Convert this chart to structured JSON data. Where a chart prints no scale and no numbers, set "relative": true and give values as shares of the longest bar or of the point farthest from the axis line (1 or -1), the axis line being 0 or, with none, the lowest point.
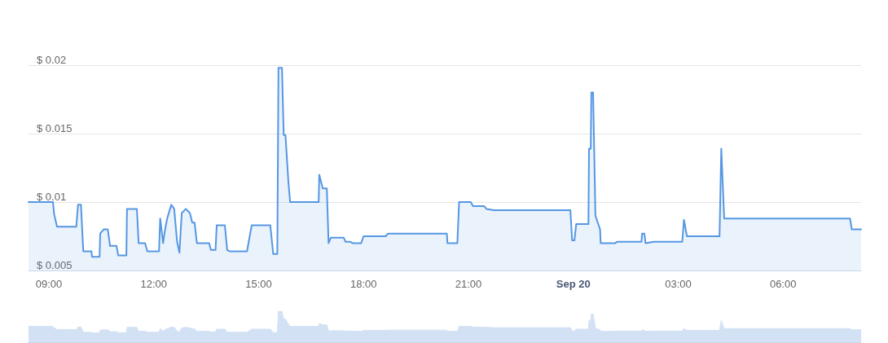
{
  "chart_data": [
    {
      "type": "area",
      "x": [
        "--09-19T08:25",
        "--09-19T09:07",
        "--09-19T09:09",
        "--09-19T09:14",
        "--09-19T09:47",
        "--09-19T09:50",
        "--09-19T09:55",
        "--09-19T09:59",
        "--09-19T10:13",
        "--09-19T10:14",
        "--09-19T10:27",
        "--09-19T10:28",
        "--09-19T10:34",
        "--09-19T10:41",
        "--09-19T10:45",
        "--09-19T10:56",
        "--09-19T10:59",
        "--09-19T11:13",
        "--09-19T11:14",
        "--09-19T11:31",
        "--09-19T11:34",
        "--09-19T11:45",
        "--09-19T11:49",
        "--09-19T12:09",
        "--09-19T12:11",
        "--09-19T12:16",
        "--09-19T12:19",
        "--09-19T12:23",
        "--09-19T12:30",
        "--09-19T12:35",
        "--09-19T12:40",
        "--09-19T12:44",
        "--09-19T12:48",
        "--09-19T12:55",
        "--09-19T13:02",
        "--09-19T13:06",
        "--09-19T13:10",
        "--09-19T13:14",
        "--09-19T13:35",
        "--09-19T13:38",
        "--09-19T13:46",
        "--09-19T13:48",
        "--09-19T14:02",
        "--09-19T14:06",
        "--09-19T14:10",
        "--09-19T14:40",
        "--09-19T14:48",
        "--09-19T15:20",
        "--09-19T15:25",
        "--09-19T15:32",
        "--09-19T15:34",
        "--09-19T15:40",
        "--09-19T15:43",
        "--09-19T15:46",
        "--09-19T15:51",
        "--09-19T15:54",
        "--09-19T16:43",
        "--09-19T16:44",
        "--09-19T16:50",
        "--09-19T16:57",
        "--09-19T17:00",
        "--09-19T17:04",
        "--09-19T17:26",
        "--09-19T17:29",
        "--09-19T17:37",
        "--09-19T17:41",
        "--09-19T17:56",
        "--09-19T18:00",
        "--09-19T18:38",
        "--09-19T18:42",
        "--09-19T20:23",
        "--09-19T20:24",
        "--09-19T20:41",
        "--09-19T20:44",
        "--09-19T21:04",
        "--09-19T21:08",
        "--09-19T21:27",
        "--09-19T21:31",
        "--09-19T21:44",
        "--09-19T23:55",
        "--09-19T23:58",
        "--09-20T00:02",
        "--09-20T00:05",
        "--09-20T00:26",
        "--09-20T00:27",
        "--09-20T00:30",
        "--09-20T00:31",
        "--09-20T00:34",
        "--09-20T00:38",
        "--09-20T00:46",
        "--09-20T00:47",
        "--09-20T01:12",
        "--09-20T01:15",
        "--09-20T01:57",
        "--09-20T01:58",
        "--09-20T02:02",
        "--09-20T02:04",
        "--09-20T02:18",
        "--09-20T03:07",
        "--09-20T03:10",
        "--09-20T03:15",
        "--09-20T04:11",
        "--09-20T04:14",
        "--09-20T04:19",
        "--09-20T07:55",
        "--09-20T07:58",
        "--09-20T08:14"
      ],
      "series": [
        {
          "color": "#5597e2",
          "values": [
            0.01,
            0.01,
            0.0091,
            0.0082,
            0.0082,
            0.0098,
            0.0098,
            0.0064,
            0.0064,
            0.006,
            0.006,
            0.0077,
            0.008,
            0.008,
            0.0068,
            0.0068,
            0.0061,
            0.0061,
            0.0095,
            0.0095,
            0.007,
            0.007,
            0.0064,
            0.0064,
            0.0088,
            0.007,
            0.0079,
            0.0088,
            0.0098,
            0.0095,
            0.0071,
            0.0063,
            0.0092,
            0.0095,
            0.0092,
            0.0085,
            0.0085,
            0.007,
            0.007,
            0.0065,
            0.0065,
            0.0083,
            0.0083,
            0.0065,
            0.0064,
            0.0064,
            0.0083,
            0.0083,
            0.0062,
            0.0062,
            0.0198,
            0.0198,
            0.0149,
            0.0149,
            0.0115,
            0.01,
            0.01,
            0.012,
            0.011,
            0.011,
            0.007,
            0.0074,
            0.0074,
            0.0071,
            0.0071,
            0.007,
            0.007,
            0.0075,
            0.0075,
            0.0077,
            0.0077,
            0.007,
            0.007,
            0.01,
            0.01,
            0.0097,
            0.0097,
            0.0095,
            0.0094,
            0.0094,
            0.0072,
            0.0072,
            0.0084,
            0.0084,
            0.0139,
            0.0139,
            0.018,
            0.018,
            0.009,
            0.008,
            0.007,
            0.007,
            0.0071,
            0.0071,
            0.0077,
            0.0077,
            0.007,
            0.0071,
            0.0071,
            0.0087,
            0.0075,
            0.0075,
            0.0139,
            0.0088,
            0.0088,
            0.008,
            0.008
          ]
        }
      ],
      "xlim": [
        "--09-19T08:25",
        "--09-20T08:14"
      ],
      "xticks": [
        {
          "value": "--09-19T09:00",
          "label": "09:00"
        },
        {
          "value": "--09-19T12:00",
          "label": "12:00"
        },
        {
          "value": "--09-19T15:00",
          "label": "15:00"
        },
        {
          "value": "--09-19T18:00",
          "label": "18:00"
        },
        {
          "value": "--09-19T21:00",
          "label": "21:00"
        },
        {
          "value": "--09-20T00:00",
          "label": "Sep 20"
        },
        {
          "value": "--09-20T03:00",
          "label": "03:00"
        },
        {
          "value": "--09-20T06:00",
          "label": "06:00"
        }
      ],
      "ylim": [
        0.005,
        0.02
      ],
      "yticks": [
        {
          "value": 0.005,
          "label": "$ 0.005"
        },
        {
          "value": 0.01,
          "label": "$ 0.01"
        },
        {
          "value": 0.015,
          "label": "$ 0.015"
        },
        {
          "value": 0.02,
          "label": "$ 0.02"
        }
      ],
      "grid": "y",
      "marker": "none",
      "line_style": "solid"
    },
    {
      "type": "area",
      "relative": true,
      "tick_labels": false,
      "x": [
        "--09-19T08:25",
        "--09-19T09:07",
        "--09-19T09:09",
        "--09-19T09:14",
        "--09-19T09:47",
        "--09-19T09:50",
        "--09-19T09:55",
        "--09-19T09:59",
        "--09-19T10:13",
        "--09-19T10:14",
        "--09-19T10:27",
        "--09-19T10:28",
        "--09-19T10:34",
        "--09-19T10:41",
        "--09-19T10:45",
        "--09-19T10:56",
        "--09-19T10:59",
        "--09-19T11:13",
        "--09-19T11:14",
        "--09-19T11:31",
        "--09-19T11:34",
        "--09-19T11:45",
        "--09-19T11:49",
        "--09-19T12:09",
        "--09-19T12:11",
        "--09-19T12:16",
        "--09-19T12:19",
        "--09-19T12:23",
        "--09-19T12:30",
        "--09-19T12:35",
        "--09-19T12:40",
        "--09-19T12:44",
        "--09-19T12:48",
        "--09-19T12:55",
        "--09-19T13:02",
        "--09-19T13:06",
        "--09-19T13:10",
        "--09-19T13:14",
        "--09-19T13:35",
        "--09-19T13:38",
        "--09-19T13:46",
        "--09-19T13:48",
        "--09-19T14:02",
        "--09-19T14:06",
        "--09-19T14:10",
        "--09-19T14:40",
        "--09-19T14:48",
        "--09-19T15:20",
        "--09-19T15:25",
        "--09-19T15:32",
        "--09-19T15:34",
        "--09-19T15:40",
        "--09-19T15:43",
        "--09-19T15:46",
        "--09-19T15:51",
        "--09-19T15:54",
        "--09-19T16:43",
        "--09-19T16:44",
        "--09-19T16:50",
        "--09-19T16:57",
        "--09-19T17:00",
        "--09-19T17:04",
        "--09-19T17:26",
        "--09-19T17:29",
        "--09-19T17:37",
        "--09-19T17:41",
        "--09-19T17:56",
        "--09-19T18:00",
        "--09-19T18:38",
        "--09-19T18:42",
        "--09-19T20:23",
        "--09-19T20:24",
        "--09-19T20:41",
        "--09-19T20:44",
        "--09-19T21:04",
        "--09-19T21:08",
        "--09-19T21:27",
        "--09-19T21:31",
        "--09-19T21:44",
        "--09-19T23:55",
        "--09-19T23:58",
        "--09-20T00:02",
        "--09-20T00:05",
        "--09-20T00:26",
        "--09-20T00:27",
        "--09-20T00:30",
        "--09-20T00:31",
        "--09-20T00:34",
        "--09-20T00:38",
        "--09-20T00:46",
        "--09-20T00:47",
        "--09-20T01:12",
        "--09-20T01:15",
        "--09-20T01:57",
        "--09-20T01:58",
        "--09-20T02:02",
        "--09-20T02:04",
        "--09-20T02:18",
        "--09-20T03:07",
        "--09-20T03:10",
        "--09-20T03:15",
        "--09-20T04:11",
        "--09-20T04:14",
        "--09-20T04:19",
        "--09-20T07:55",
        "--09-20T07:58",
        "--09-20T08:14"
      ],
      "series": [
        {
          "color": "#d3e1f5",
          "values": [
            0.51,
            0.51,
            0.46,
            0.41,
            0.41,
            0.49,
            0.49,
            0.32,
            0.32,
            0.3,
            0.3,
            0.39,
            0.4,
            0.4,
            0.34,
            0.34,
            0.31,
            0.31,
            0.48,
            0.48,
            0.35,
            0.35,
            0.32,
            0.32,
            0.44,
            0.35,
            0.4,
            0.44,
            0.49,
            0.48,
            0.36,
            0.32,
            0.46,
            0.48,
            0.46,
            0.43,
            0.43,
            0.35,
            0.35,
            0.33,
            0.33,
            0.42,
            0.42,
            0.33,
            0.32,
            0.32,
            0.42,
            0.42,
            0.31,
            0.31,
            1,
            1,
            0.75,
            0.75,
            0.58,
            0.51,
            0.51,
            0.61,
            0.56,
            0.56,
            0.35,
            0.37,
            0.37,
            0.36,
            0.36,
            0.35,
            0.35,
            0.38,
            0.38,
            0.39,
            0.39,
            0.35,
            0.35,
            0.51,
            0.51,
            0.49,
            0.49,
            0.48,
            0.47,
            0.47,
            0.36,
            0.36,
            0.42,
            0.42,
            0.7,
            0.7,
            0.91,
            0.91,
            0.45,
            0.4,
            0.35,
            0.35,
            0.36,
            0.36,
            0.39,
            0.39,
            0.35,
            0.36,
            0.36,
            0.44,
            0.38,
            0.38,
            0.7,
            0.44,
            0.44,
            0.4,
            0.4
          ]
        }
      ],
      "xlim": [
        "--09-19T08:25",
        "--09-20T08:14"
      ]
    }
  ]
}
